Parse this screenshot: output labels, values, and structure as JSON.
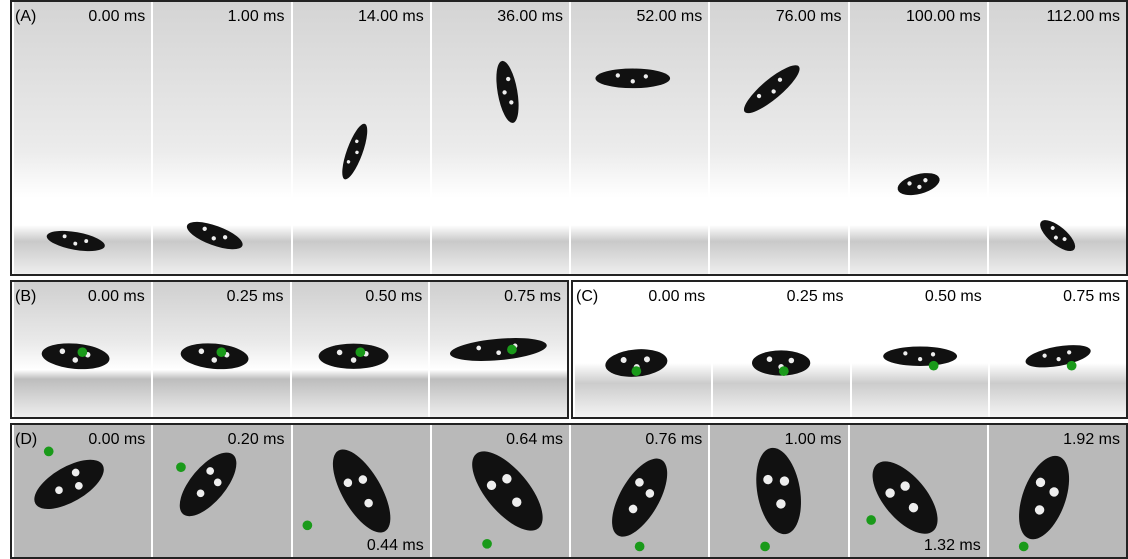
{
  "panels": [
    {
      "label": "(A)",
      "frames": [
        "0.00 ms",
        "1.00 ms",
        "14.00 ms",
        "36.00 ms",
        "52.00 ms",
        "76.00 ms",
        "100.00 ms",
        "112.00 ms"
      ]
    },
    {
      "label": "(B)",
      "frames": [
        "0.00 ms",
        "0.25 ms",
        "0.50 ms",
        "0.75 ms"
      ]
    },
    {
      "label": "(C)",
      "frames": [
        "0.00 ms",
        "0.25 ms",
        "0.50 ms",
        "0.75 ms"
      ]
    },
    {
      "label": "(D)",
      "frames": [
        "0.00 ms",
        "0.20 ms",
        "0.44 ms",
        "0.64 ms",
        "0.76 ms",
        "1.00 ms",
        "1.32 ms",
        "1.92 ms"
      ]
    }
  ]
}
